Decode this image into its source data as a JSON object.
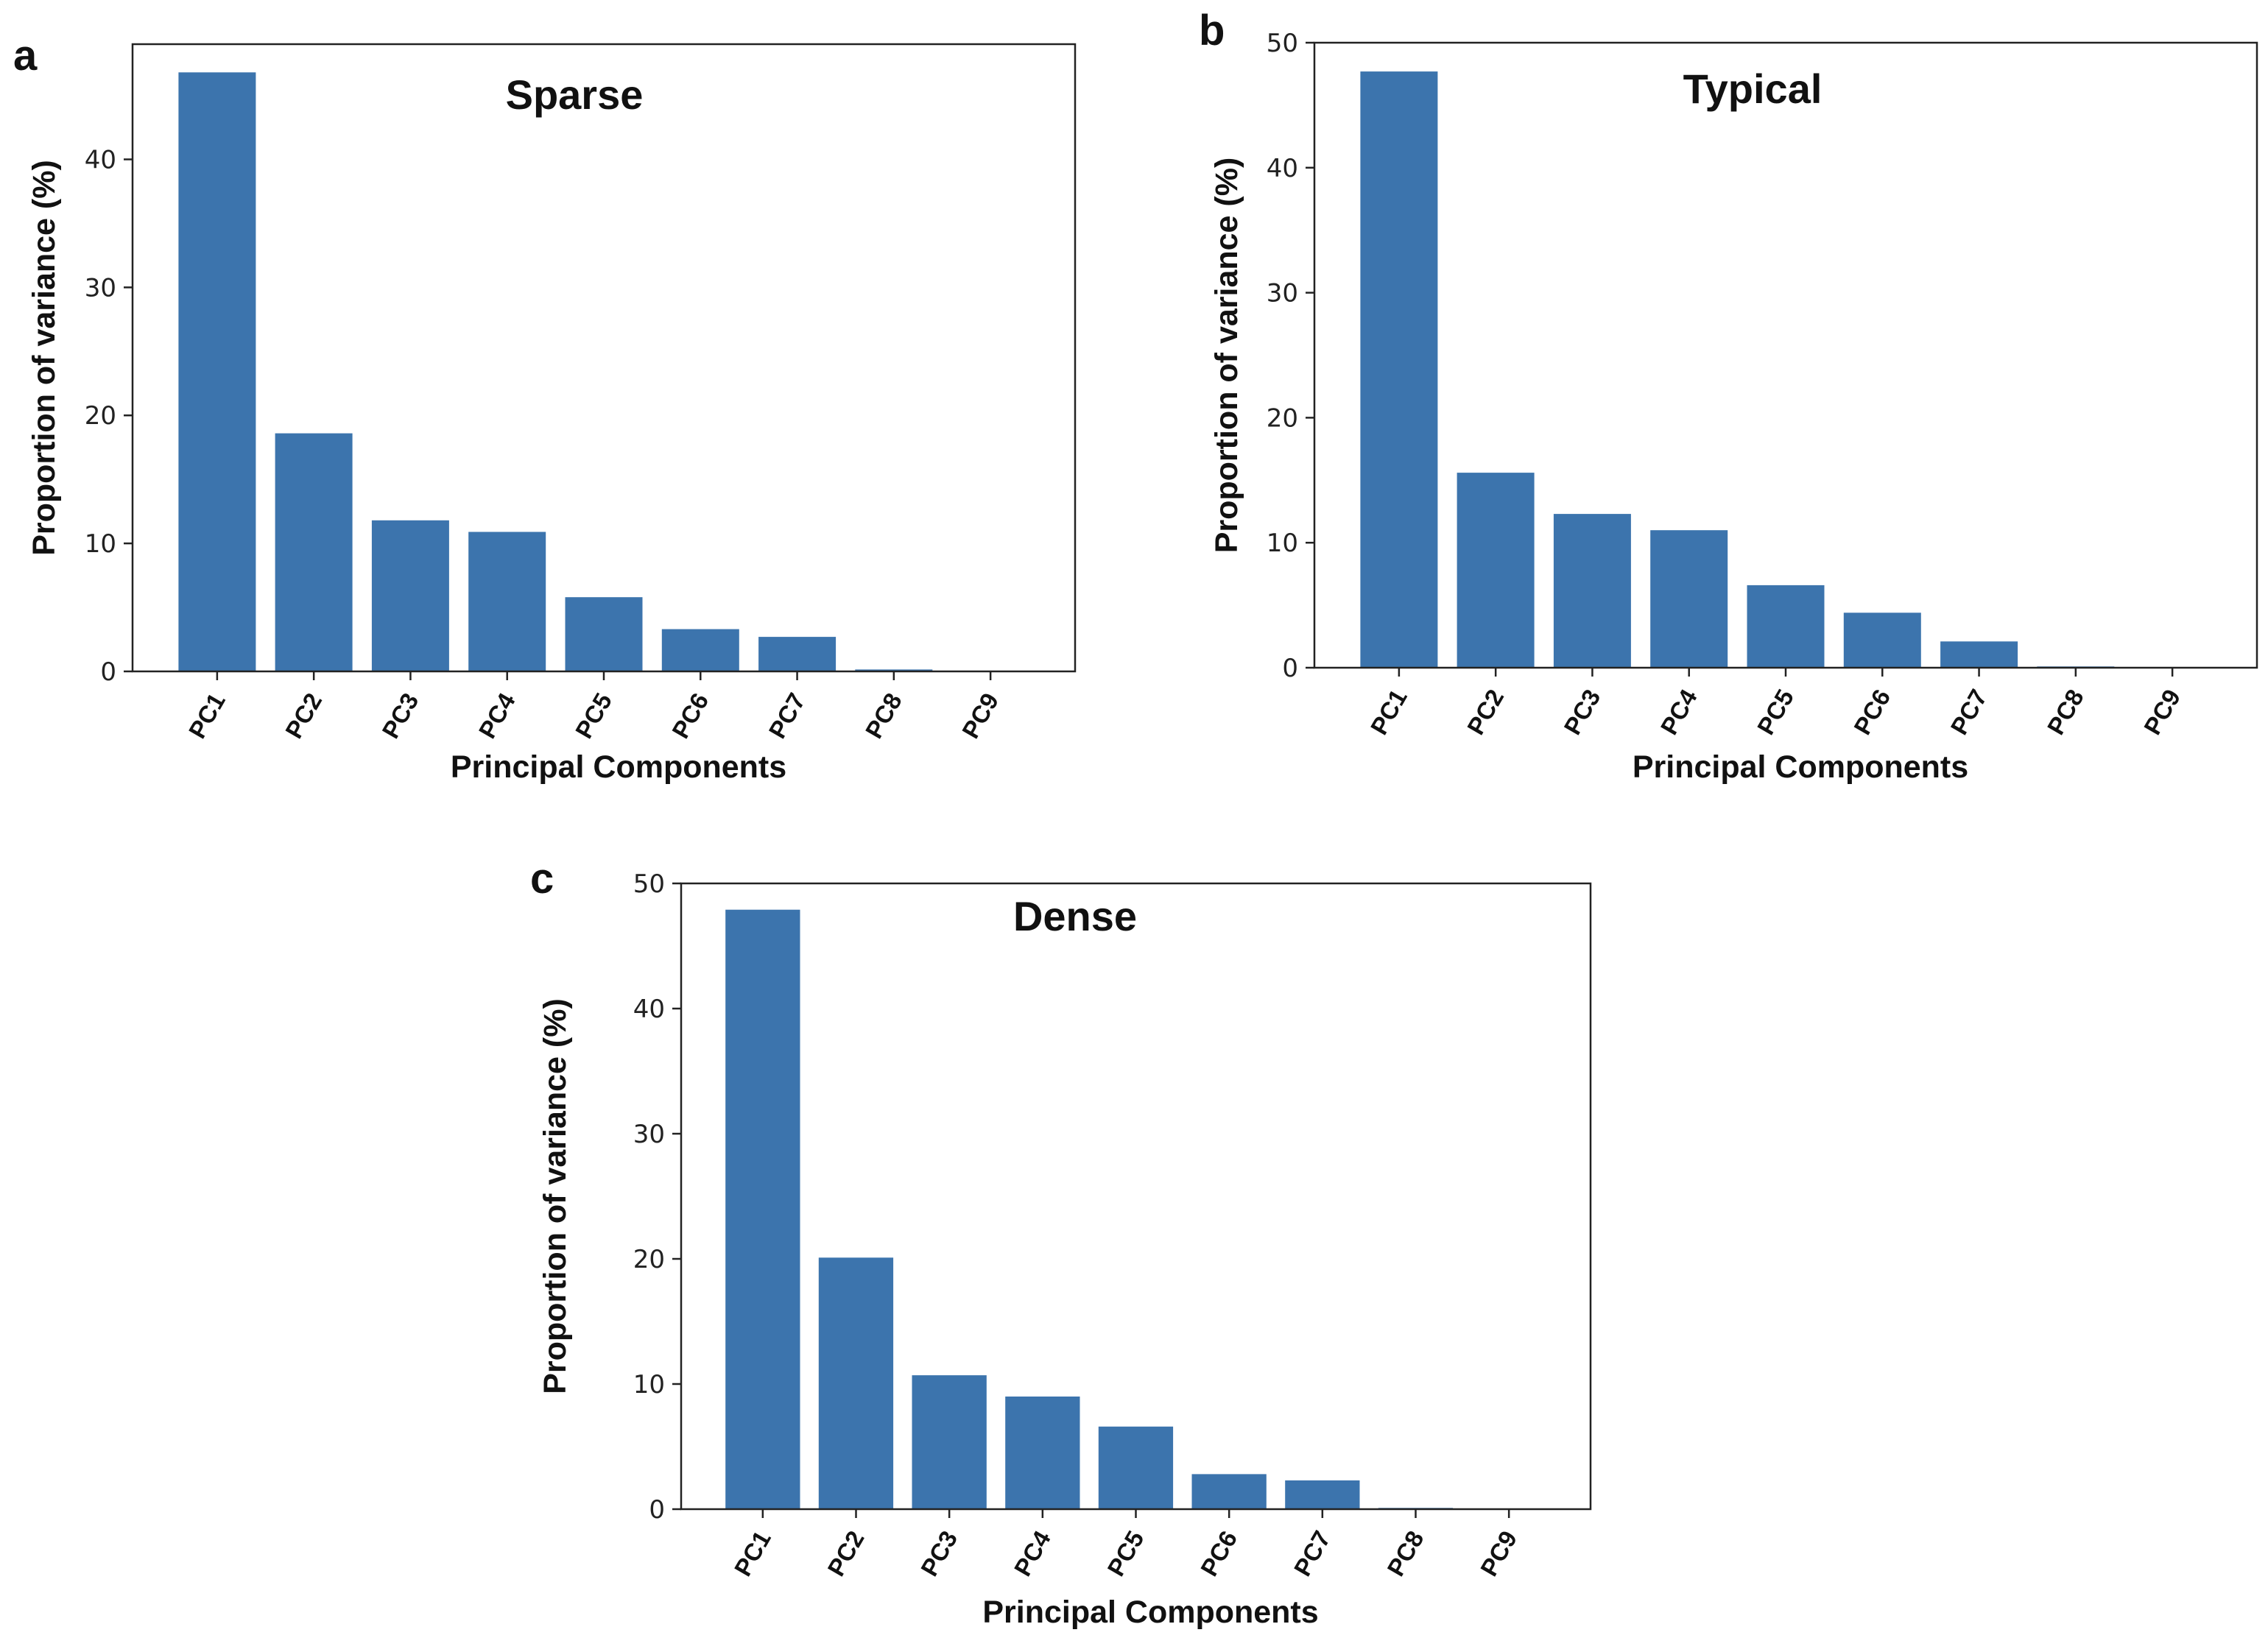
{
  "figure": {
    "panel_letters": [
      "a",
      "b",
      "c"
    ]
  },
  "chart_data": [
    {
      "type": "bar",
      "panel": "a",
      "title": "Sparse",
      "xlabel": "Principal Components",
      "ylabel": "Proportion of variance (%)",
      "categories": [
        "PC1",
        "PC2",
        "PC3",
        "PC4",
        "PC5",
        "PC6",
        "PC7",
        "PC8",
        "PC9"
      ],
      "values": [
        46.8,
        18.6,
        11.8,
        10.9,
        5.8,
        3.3,
        2.7,
        0.15,
        0.05
      ],
      "ylim": [
        0,
        49
      ],
      "yticks": [
        0,
        10,
        20,
        30,
        40
      ],
      "grid": false,
      "color": "#3c74ad"
    },
    {
      "type": "bar",
      "panel": "b",
      "title": "Typical",
      "xlabel": "Principal Components",
      "ylabel": "Proportion of variance (%)",
      "categories": [
        "PC1",
        "PC2",
        "PC3",
        "PC4",
        "PC5",
        "PC6",
        "PC7",
        "PC8",
        "PC9"
      ],
      "values": [
        47.7,
        15.6,
        12.3,
        11.0,
        6.6,
        4.4,
        2.1,
        0.1,
        0.05
      ],
      "ylim": [
        0,
        50
      ],
      "yticks": [
        0,
        10,
        20,
        30,
        40,
        50
      ],
      "grid": false,
      "color": "#3c74ad"
    },
    {
      "type": "bar",
      "panel": "c",
      "title": "Dense",
      "xlabel": "Principal Components",
      "ylabel": "Proportion of variance (%)",
      "categories": [
        "PC1",
        "PC2",
        "PC3",
        "PC4",
        "PC5",
        "PC6",
        "PC7",
        "PC8",
        "PC9"
      ],
      "values": [
        47.9,
        20.1,
        10.7,
        9.0,
        6.6,
        2.8,
        2.3,
        0.1,
        0.05
      ],
      "ylim": [
        0,
        50
      ],
      "yticks": [
        0,
        10,
        20,
        30,
        40,
        50
      ],
      "grid": false,
      "color": "#3c74ad"
    }
  ]
}
